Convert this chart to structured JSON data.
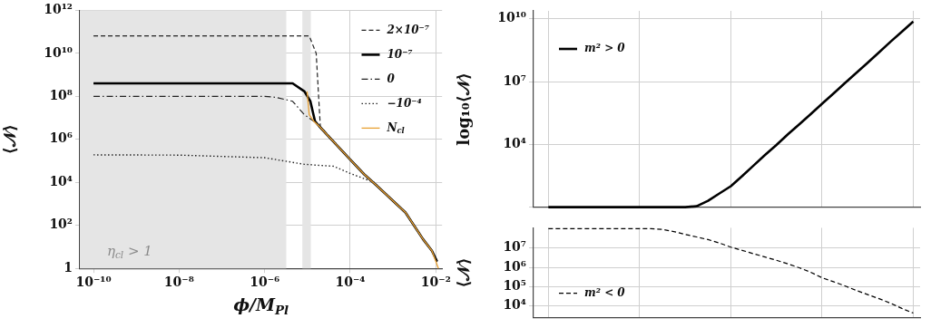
{
  "chart_data": [
    {
      "type": "line",
      "xlabel": "ϕ/M$_{Pl}$",
      "ylabel": "⟨𝒩⟩",
      "log": "xy",
      "grid": true,
      "legend": "top right",
      "marker": "none",
      "xlim": [
        4.8e-11,
        0.014
      ],
      "xticks": [
        {
          "value": 1e-10,
          "label": "10⁻¹⁰"
        },
        {
          "value": 1e-08,
          "label": "10⁻⁸"
        },
        {
          "value": 1e-06,
          "label": "10⁻⁶"
        },
        {
          "value": 0.0001,
          "label": "10⁻⁴"
        },
        {
          "value": 0.01,
          "label": "10⁻²"
        }
      ],
      "ylim": [
        1,
        1000000000000.0
      ],
      "yticks": [
        1,
        {
          "value": 100,
          "label": "10²"
        },
        {
          "value": 10000,
          "label": "10⁴"
        },
        {
          "value": 1000000.0,
          "label": "10⁶"
        },
        {
          "value": 100000000.0,
          "label": "10⁸"
        },
        {
          "value": 10000000000.0,
          "label": "10¹⁰"
        },
        {
          "value": 1000000000000.0,
          "label": "10¹²"
        }
      ],
      "bands": [
        {
          "axis": "x",
          "from": 4.8e-11,
          "to": 3.2e-06,
          "label": "η$_{cl}$ > 1",
          "color": "#e5e5e5"
        },
        {
          "axis": "x",
          "from": 7.6e-06,
          "to": 1.2e-05,
          "color": "#e5e5e5"
        }
      ],
      "series": [
        {
          "name": "2×10⁻⁷",
          "color": "#222222",
          "line_style": "dashed",
          "x": [
            1e-10,
            1e-06,
            1.1e-05,
            1.6e-05,
            1.8e-05,
            2e-05,
            0.0001,
            0.00021,
            0.00043,
            0.00195,
            0.005,
            0.0081,
            0.0107
          ],
          "values": [
            65000000000.0,
            65000000000.0,
            65000000000.0,
            10000000000.0,
            160000000.0,
            4000000.0,
            115000.0,
            24000.0,
            6600.0,
            400,
            23,
            6.6,
            2
          ]
        },
        {
          "name": "10⁻⁷",
          "color": "#000000",
          "line_style": "solid",
          "x": [
            1e-10,
            1e-06,
            4.5e-06,
            8.5e-06,
            1.17e-05,
            1.5e-05,
            1.9e-05,
            0.0001,
            0.00021,
            0.00043,
            0.00195,
            0.005,
            0.0081,
            0.0107
          ],
          "values": [
            400000000.0,
            400000000.0,
            400000000.0,
            170000000.0,
            59000000.0,
            7000000.0,
            4000000.0,
            115000.0,
            24000.0,
            6600.0,
            400,
            23,
            6.6,
            2.1
          ]
        },
        {
          "name": "0",
          "color": "#222222",
          "line_style": "dashdot",
          "x": [
            1e-10,
            1e-06,
            1.8e-06,
            4.5e-06,
            8.5e-06,
            1.4e-05,
            2e-05,
            0.0001,
            0.00021,
            0.00043,
            0.00195,
            0.005,
            0.0081,
            0.0107
          ],
          "values": [
            100000000.0,
            100000000.0,
            90000000.0,
            59000000.0,
            14000000.0,
            7000000.0,
            4000000.0,
            115000.0,
            24000.0,
            6600.0,
            400,
            23,
            6.6,
            2
          ]
        },
        {
          "name": "−10⁻⁴",
          "color": "#222222",
          "line_style": "dotted",
          "x": [
            1e-10,
            1e-08,
            1e-06,
            8.5e-06,
            4.1e-05,
            0.0001,
            0.00036,
            0.00195,
            0.005,
            0.0081,
            0.0107
          ],
          "values": [
            190000.0,
            185000.0,
            140000.0,
            69000.0,
            56000.0,
            26000.0,
            10000.0,
            400,
            23,
            6.6,
            2
          ]
        },
        {
          "name": "N$_{cl}$",
          "color": "#e8a033",
          "x": [
            9.8e-06,
            1.1e-05,
            1.4e-05,
            1.9e-05,
            0.0001,
            0.00021,
            0.00043,
            0.00195,
            0.005,
            0.0081,
            0.0115
          ],
          "values": [
            170000000.0,
            14000000.0,
            7000000.0,
            4000000.0,
            115000.0,
            24000.0,
            6600.0,
            400,
            23,
            6.6,
            1
          ]
        }
      ]
    },
    {
      "type": "line",
      "ylabel": "log₁₀⟨𝒩⟩",
      "log": "y",
      "grid": true,
      "legend": "top left",
      "marker": "none",
      "tick_labels": "y",
      "categories": [
        null,
        null,
        null,
        null,
        null,
        null,
        null,
        null,
        null,
        null,
        null,
        null,
        null,
        null,
        null,
        null,
        null,
        null,
        null,
        null,
        null,
        null,
        null,
        null,
        null,
        null,
        null,
        null,
        null,
        null,
        null,
        null,
        null
      ],
      "ylim": [
        10,
        24000000000.0
      ],
      "yticks": [
        {
          "value": 10,
          "label": null
        },
        {
          "value": 10000,
          "label": "10⁴"
        },
        {
          "value": 10000000.0,
          "label": "10⁷"
        },
        {
          "value": 10000000000.0,
          "label": "10¹⁰"
        }
      ],
      "series": [
        {
          "name": "m² > 0",
          "color": "#000000",
          "line_style": "solid",
          "values": [
            10,
            10,
            10,
            10,
            10,
            10,
            10,
            10,
            10,
            10,
            10,
            10,
            10,
            11,
            20,
            45,
            100,
            310,
            980,
            3100,
            9300,
            30000.0,
            91000.0,
            280000.0,
            870000.0,
            2700000.0,
            8500000.0,
            26000000.0,
            80000000.0,
            250000000.0,
            800000000.0,
            2400000000.0,
            7400000000.0
          ]
        }
      ]
    },
    {
      "type": "line",
      "ylabel": "⟨𝒩⟩",
      "log": "y",
      "grid": true,
      "legend": "bottom left",
      "marker": "none",
      "tick_labels": "y",
      "categories": [
        null,
        null,
        null,
        null,
        null,
        null,
        null,
        null,
        null,
        null,
        null,
        null,
        null,
        null,
        null,
        null,
        null,
        null,
        null,
        null,
        null,
        null,
        null,
        null,
        null,
        null,
        null,
        null,
        null,
        null,
        null,
        null,
        null
      ],
      "ylim": [
        2500,
        110000000.0
      ],
      "yticks": [
        {
          "value": 10000,
          "label": "10⁴"
        },
        {
          "value": 100000,
          "label": "10⁵"
        },
        {
          "value": 1000000.0,
          "label": "10⁶"
        },
        {
          "value": 10000000.0,
          "label": "10⁷"
        }
      ],
      "series": [
        {
          "name": "m² < 0",
          "color": "#000000",
          "line_style": "dashed",
          "values": [
            100000000.0,
            100000000.0,
            100000000.0,
            100000000.0,
            100000000.0,
            100000000.0,
            100000000.0,
            100000000.0,
            100000000.0,
            98000000.0,
            90000000.0,
            70000000.0,
            50000000.0,
            37000000.0,
            27000000.0,
            18000000.0,
            11000000.0,
            7500000.0,
            5000000.0,
            3400000.0,
            2300000.0,
            1500000.0,
            950000.0,
            560000.0,
            290000.0,
            180000.0,
            110000.0,
            64000.0,
            39000.0,
            24000.0,
            14000.0,
            7500.0,
            4300.0
          ]
        }
      ]
    }
  ]
}
